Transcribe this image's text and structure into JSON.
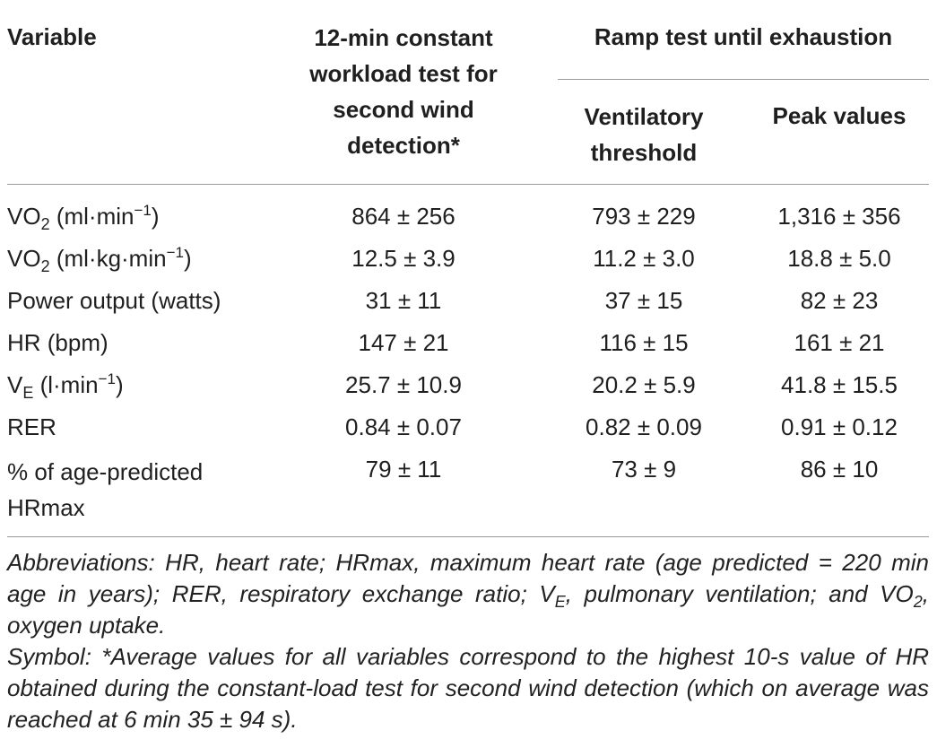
{
  "table": {
    "headers": {
      "variable": "Variable",
      "constant_test": [
        "12-min constant",
        "workload test for",
        "second wind",
        "detection*"
      ],
      "ramp_group": "Ramp test until exhaustion",
      "ventilatory": [
        "Ventilatory",
        "threshold"
      ],
      "peak": "Peak values"
    },
    "rows": [
      {
        "label": "VO",
        "sub": "2",
        "unit_pre": " (ml·min",
        "sup": "−1",
        "unit_post": ")",
        "constant": "864 ± 256",
        "ventilatory": "793 ± 229",
        "peak": "1,316 ± 356"
      },
      {
        "label": "VO",
        "sub": "2",
        "unit_pre": " (ml·kg·min",
        "sup": "−1",
        "unit_post": ")",
        "constant": "12.5 ± 3.9",
        "ventilatory": "11.2 ± 3.0",
        "peak": "18.8 ± 5.0"
      },
      {
        "label": "Power output (watts)",
        "constant": "31 ± 11",
        "ventilatory": "37 ± 15",
        "peak": "82 ± 23"
      },
      {
        "label": "HR (bpm)",
        "constant": "147 ± 21",
        "ventilatory": "116 ± 15",
        "peak": "161 ± 21"
      },
      {
        "label": "V",
        "sub": "E",
        "unit_pre": " (l·min",
        "sup": "−1",
        "unit_post": ")",
        "constant": "25.7 ± 10.9",
        "ventilatory": "20.2 ± 5.9",
        "peak": "41.8 ± 15.5"
      },
      {
        "label": "RER",
        "constant": "0.84 ± 0.07",
        "ventilatory": "0.82 ± 0.09",
        "peak": "0.91 ± 0.12"
      },
      {
        "label": "% of age-predicted",
        "label2": "HRmax",
        "constant": "79 ± 11",
        "ventilatory": "73 ± 9",
        "peak": "86 ± 10"
      }
    ]
  },
  "footnotes": {
    "abbr_1": "Abbreviations: HR, heart rate; HRmax, maximum heart rate (age predicted = 220 min age in years); RER, respiratory exchange ratio; V",
    "abbr_1_sub": "E",
    "abbr_2": ", pulmonary ventilation; and VO",
    "abbr_2_sub": "2",
    "abbr_3": ", oxygen uptake.",
    "symbol": "Symbol: *Average values for all variables correspond to the highest 10-s value of HR obtained during the constant-load test for second wind detection (which on average was reached at 6 min 35 ± 94 s)."
  }
}
